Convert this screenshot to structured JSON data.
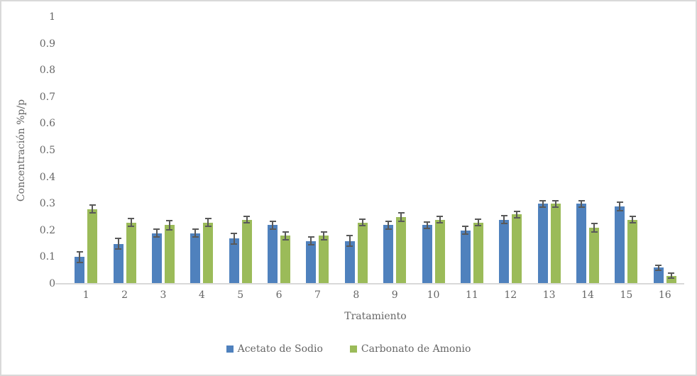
{
  "frame": {
    "background": "#FFFFFF",
    "border_color": "#D9D9D9"
  },
  "chart_data": {
    "type": "bar",
    "title": "",
    "xlabel": "Tratamiento",
    "ylabel": "Concentración %p/p",
    "categories": [
      "1",
      "2",
      "3",
      "4",
      "5",
      "6",
      "7",
      "8",
      "9",
      "10",
      "11",
      "12",
      "13",
      "14",
      "15",
      "16"
    ],
    "series": [
      {
        "name": "Acetato de Sodio",
        "color": "#4F81BD",
        "values": [
          0.1,
          0.15,
          0.19,
          0.19,
          0.17,
          0.22,
          0.16,
          0.16,
          0.22,
          0.22,
          0.2,
          0.24,
          0.3,
          0.3,
          0.29,
          0.06
        ],
        "errors": [
          0.02,
          0.02,
          0.015,
          0.015,
          0.02,
          0.015,
          0.015,
          0.02,
          0.015,
          0.012,
          0.015,
          0.015,
          0.012,
          0.012,
          0.015,
          0.01
        ]
      },
      {
        "name": "Carbonato de Amonio",
        "color": "#9BBB59",
        "values": [
          0.28,
          0.23,
          0.22,
          0.23,
          0.24,
          0.18,
          0.18,
          0.23,
          0.25,
          0.24,
          0.23,
          0.26,
          0.3,
          0.21,
          0.24,
          0.03
        ],
        "errors": [
          0.015,
          0.015,
          0.018,
          0.015,
          0.012,
          0.015,
          0.015,
          0.012,
          0.015,
          0.012,
          0.012,
          0.012,
          0.012,
          0.015,
          0.012,
          0.01
        ]
      }
    ],
    "ylim": [
      0,
      1
    ],
    "yticks": [
      {
        "label": "0",
        "value": 0.0
      },
      {
        "label": "0.1",
        "value": 0.1
      },
      {
        "label": "0.2",
        "value": 0.2
      },
      {
        "label": "0.3",
        "value": 0.3
      },
      {
        "label": "0.4",
        "value": 0.4
      },
      {
        "label": "0.5",
        "value": 0.5
      },
      {
        "label": "0.6",
        "value": 0.6
      },
      {
        "label": "0.7",
        "value": 0.7
      },
      {
        "label": "0.8",
        "value": 0.8
      },
      {
        "label": "0.9",
        "value": 0.9
      },
      {
        "label": "1",
        "value": 1.0
      }
    ],
    "grid": false,
    "legend_position": "bottom",
    "error_bar_color": "#595959",
    "axis_text_color": "#666666",
    "axis_line_color": "#D9D9D9"
  }
}
